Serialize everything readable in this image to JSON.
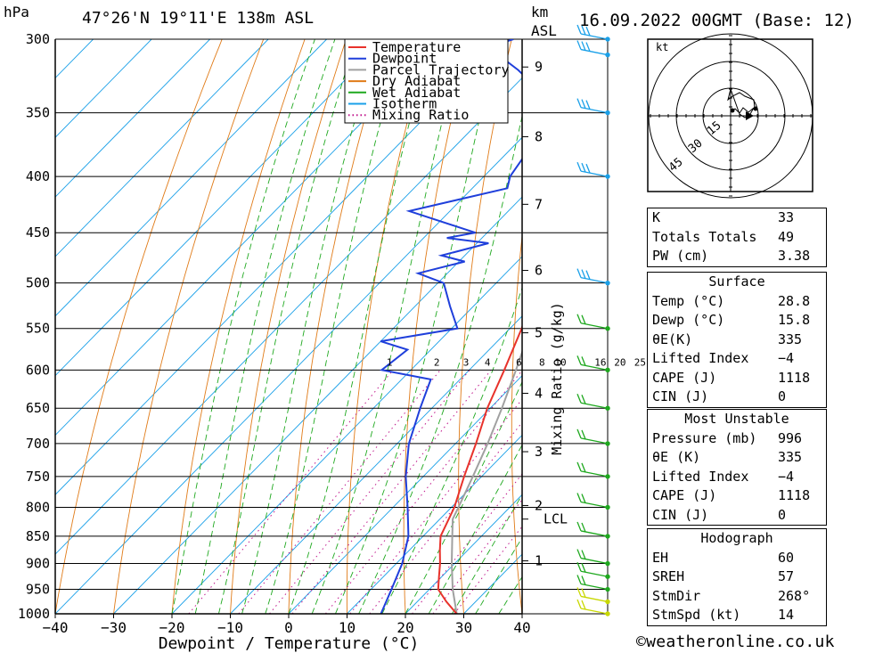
{
  "header": {
    "unit_pressure": "hPa",
    "location": "47°26'N  19°11'E  138m  ASL",
    "unit_height": "km",
    "unit_height_2": "ASL",
    "run": "16.09.2022  00GMT  (Base: 12)"
  },
  "legend": [
    {
      "label": "Temperature",
      "color": "#e8322b",
      "style": "solid"
    },
    {
      "label": "Dewpoint",
      "color": "#1f3fdb",
      "style": "solid"
    },
    {
      "label": "Parcel Trajectory",
      "color": "#a0a0a0",
      "style": "solid"
    },
    {
      "label": "Dry Adiabat",
      "color": "#e07b18",
      "style": "solid"
    },
    {
      "label": "Wet Adiabat",
      "color": "#1ea81e",
      "style": "solid"
    },
    {
      "label": "Isotherm",
      "color": "#1aa0e8",
      "style": "solid"
    },
    {
      "label": "Mixing Ratio",
      "color": "#c0168c",
      "style": "dotted"
    }
  ],
  "chart_data": {
    "type": "skew-t log-p sounding",
    "xlabel": "Dewpoint / Temperature (°C)",
    "ylabel": "hPa",
    "xlim": [
      -40,
      40
    ],
    "ylim": [
      1000,
      300
    ],
    "x_ticks": [
      "−40",
      "−30",
      "−20",
      "−10",
      "0",
      "10",
      "20",
      "30",
      "40"
    ],
    "x_tick_values": [
      -40,
      -30,
      -20,
      -10,
      0,
      10,
      20,
      30,
      40
    ],
    "pressure_levels": [
      300,
      350,
      400,
      450,
      500,
      550,
      600,
      650,
      700,
      750,
      800,
      850,
      900,
      950,
      1000
    ],
    "height_axis_label": "km ASL",
    "height_ticks": [
      {
        "label": "9",
        "p": 318
      },
      {
        "label": "8",
        "p": 368
      },
      {
        "label": "7",
        "p": 424
      },
      {
        "label": "6",
        "p": 487
      },
      {
        "label": "5",
        "p": 555
      },
      {
        "label": "4",
        "p": 630
      },
      {
        "label": "3",
        "p": 712
      },
      {
        "label": "2",
        "p": 797
      },
      {
        "label": "LCL",
        "p": 820
      },
      {
        "label": "1",
        "p": 895
      }
    ],
    "mixing_ratio_axis_label": "Mixing Ratio (g/kg)",
    "mixing_ratio_lines": [
      "1",
      "2",
      "3",
      "4",
      "6",
      "8",
      "10",
      "16",
      "20",
      "25"
    ],
    "series": [
      {
        "name": "Temperature",
        "color": "#e8322b",
        "points": [
          {
            "p": 1000,
            "t": 28.8
          },
          {
            "p": 975,
            "t": 25
          },
          {
            "p": 950,
            "t": 21.5
          },
          {
            "p": 925,
            "t": 19.5
          },
          {
            "p": 900,
            "t": 17.5
          },
          {
            "p": 875,
            "t": 15.2
          },
          {
            "p": 850,
            "t": 13
          },
          {
            "p": 800,
            "t": 10.5
          },
          {
            "p": 750,
            "t": 7
          },
          {
            "p": 700,
            "t": 3.5
          },
          {
            "p": 650,
            "t": -0.5
          },
          {
            "p": 600,
            "t": -4
          },
          {
            "p": 550,
            "t": -8
          },
          {
            "p": 500,
            "t": -13
          },
          {
            "p": 450,
            "t": -18.5
          },
          {
            "p": 400,
            "t": -25.5
          },
          {
            "p": 350,
            "t": -33
          },
          {
            "p": 300,
            "t": -42
          }
        ]
      },
      {
        "name": "Dewpoint",
        "color": "#1f3fdb",
        "points": [
          {
            "p": 1000,
            "t": 15.8
          },
          {
            "p": 950,
            "t": 13.5
          },
          {
            "p": 900,
            "t": 11
          },
          {
            "p": 850,
            "t": 7.5
          },
          {
            "p": 800,
            "t": 2.5
          },
          {
            "p": 750,
            "t": -3
          },
          {
            "p": 700,
            "t": -8
          },
          {
            "p": 650,
            "t": -12
          },
          {
            "p": 612,
            "t": -15
          },
          {
            "p": 600,
            "t": -25
          },
          {
            "p": 575,
            "t": -24
          },
          {
            "p": 565,
            "t": -30
          },
          {
            "p": 550,
            "t": -19
          },
          {
            "p": 525,
            "t": -24
          },
          {
            "p": 500,
            "t": -29
          },
          {
            "p": 490,
            "t": -35
          },
          {
            "p": 478,
            "t": -29
          },
          {
            "p": 472,
            "t": -34
          },
          {
            "p": 460,
            "t": -28
          },
          {
            "p": 455,
            "t": -36
          },
          {
            "p": 450,
            "t": -32
          },
          {
            "p": 430,
            "t": -47
          },
          {
            "p": 410,
            "t": -34
          },
          {
            "p": 400,
            "t": -35.5
          },
          {
            "p": 360,
            "t": -38
          },
          {
            "p": 340,
            "t": -42
          },
          {
            "p": 320,
            "t": -52
          },
          {
            "p": 305,
            "t": -61
          },
          {
            "p": 300,
            "t": -58
          }
        ]
      },
      {
        "name": "Parcel Trajectory",
        "color": "#a0a0a0",
        "points": [
          {
            "p": 1000,
            "t": 28.8
          },
          {
            "p": 950,
            "t": 24
          },
          {
            "p": 900,
            "t": 19.5
          },
          {
            "p": 850,
            "t": 15
          },
          {
            "p": 820,
            "t": 12.2
          },
          {
            "p": 800,
            "t": 11.2
          },
          {
            "p": 750,
            "t": 8.5
          },
          {
            "p": 700,
            "t": 5.5
          },
          {
            "p": 650,
            "t": 2
          },
          {
            "p": 600,
            "t": -2
          },
          {
            "p": 550,
            "t": -6.5
          },
          {
            "p": 500,
            "t": -11.5
          },
          {
            "p": 450,
            "t": -17.5
          },
          {
            "p": 400,
            "t": -24.5
          },
          {
            "p": 350,
            "t": -33
          },
          {
            "p": 300,
            "t": -43
          }
        ]
      }
    ],
    "wind_barbs_p": [
      300,
      310,
      350,
      400,
      500,
      550,
      600,
      650,
      700,
      750,
      800,
      850,
      900,
      925,
      950,
      975,
      1000
    ]
  },
  "hodograph": {
    "unit": "kt",
    "ring_labels": [
      "15",
      "30",
      "45"
    ]
  },
  "indices": [
    {
      "label": "K",
      "value": "33"
    },
    {
      "label": "Totals Totals",
      "value": "49"
    },
    {
      "label": "PW (cm)",
      "value": "3.38"
    }
  ],
  "surface": {
    "title": "Surface",
    "rows": [
      {
        "label": "Temp (°C)",
        "value": "28.8"
      },
      {
        "label": "Dewp (°C)",
        "value": "15.8"
      },
      {
        "label": "θE(K)",
        "value": "335"
      },
      {
        "label": "Lifted Index",
        "value": "−4"
      },
      {
        "label": "CAPE (J)",
        "value": "1118"
      },
      {
        "label": "CIN (J)",
        "value": "0"
      }
    ]
  },
  "most_unstable": {
    "title": "Most Unstable",
    "rows": [
      {
        "label": "Pressure (mb)",
        "value": "996"
      },
      {
        "label": "θE (K)",
        "value": "335"
      },
      {
        "label": "Lifted Index",
        "value": "−4"
      },
      {
        "label": "CAPE (J)",
        "value": "1118"
      },
      {
        "label": "CIN (J)",
        "value": "0"
      }
    ]
  },
  "hodograph_table": {
    "title": "Hodograph",
    "rows": [
      {
        "label": "EH",
        "value": "60"
      },
      {
        "label": "SREH",
        "value": "57"
      },
      {
        "label": "StmDir",
        "value": "268°"
      },
      {
        "label": "StmSpd (kt)",
        "value": "14"
      }
    ]
  },
  "footer": "©weatheronline.co.uk"
}
